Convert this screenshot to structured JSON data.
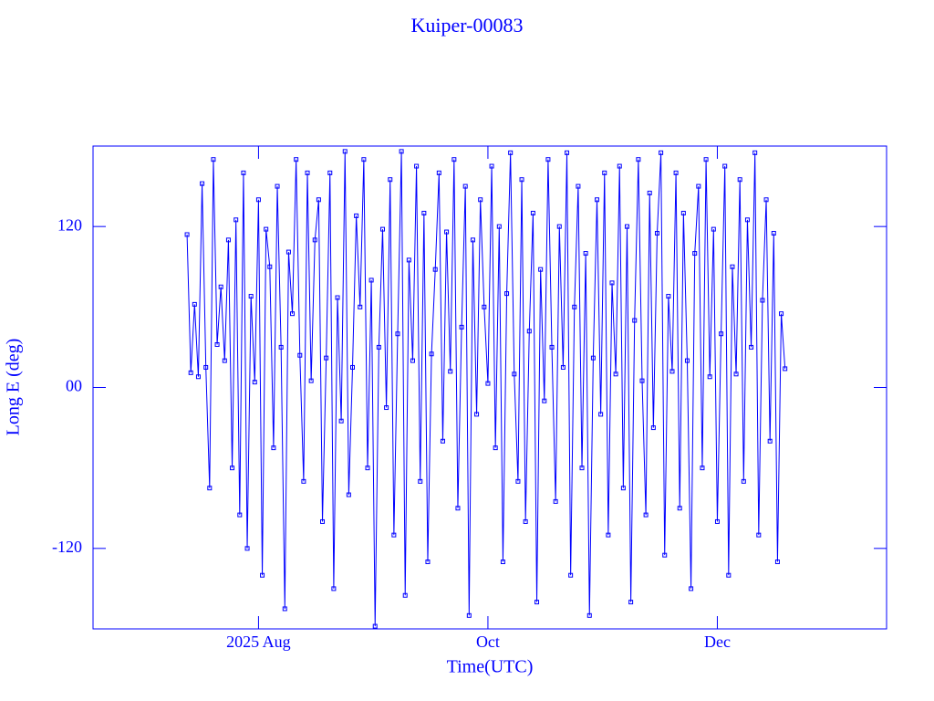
{
  "chart_data": {
    "type": "line",
    "title": "Kuiper-00083",
    "x_label": "Time(UTC)",
    "y_label": "Long E (deg)",
    "color": "#0000ff",
    "xlim": [
      "2025-06-18",
      "2026-01-15"
    ],
    "xticks": [
      {
        "value": "2025-08-01",
        "label": "2025 Aug"
      },
      {
        "value": "2025-10-01",
        "label": "Oct"
      },
      {
        "value": "2025-12-01",
        "label": "Dec"
      }
    ],
    "ylim": [
      -180,
      180
    ],
    "yticks": [
      120,
      {
        "value": 0,
        "label": "00"
      },
      -120
    ],
    "x": [
      "2025-07-13",
      "2025-07-14",
      "2025-07-15",
      "2025-07-16",
      "2025-07-17",
      "2025-07-18",
      "2025-07-19",
      "2025-07-20",
      "2025-07-21",
      "2025-07-22",
      "2025-07-23",
      "2025-07-24",
      "2025-07-25",
      "2025-07-26",
      "2025-07-27",
      "2025-07-28",
      "2025-07-29",
      "2025-07-30",
      "2025-07-31",
      "2025-08-01",
      "2025-08-02",
      "2025-08-03",
      "2025-08-04",
      "2025-08-05",
      "2025-08-06",
      "2025-08-07",
      "2025-08-08",
      "2025-08-09",
      "2025-08-10",
      "2025-08-11",
      "2025-08-12",
      "2025-08-13",
      "2025-08-14",
      "2025-08-15",
      "2025-08-16",
      "2025-08-17",
      "2025-08-18",
      "2025-08-19",
      "2025-08-20",
      "2025-08-21",
      "2025-08-22",
      "2025-08-23",
      "2025-08-24",
      "2025-08-25",
      "2025-08-26",
      "2025-08-27",
      "2025-08-28",
      "2025-08-29",
      "2025-08-30",
      "2025-08-31",
      "2025-09-01",
      "2025-09-02",
      "2025-09-03",
      "2025-09-04",
      "2025-09-05",
      "2025-09-06",
      "2025-09-07",
      "2025-09-08",
      "2025-09-09",
      "2025-09-10",
      "2025-09-11",
      "2025-09-12",
      "2025-09-13",
      "2025-09-14",
      "2025-09-15",
      "2025-09-16",
      "2025-09-17",
      "2025-09-18",
      "2025-09-19",
      "2025-09-20",
      "2025-09-21",
      "2025-09-22",
      "2025-09-23",
      "2025-09-24",
      "2025-09-25",
      "2025-09-26",
      "2025-09-27",
      "2025-09-28",
      "2025-09-29",
      "2025-09-30",
      "2025-10-01",
      "2025-10-02",
      "2025-10-03",
      "2025-10-04",
      "2025-10-05",
      "2025-10-06",
      "2025-10-07",
      "2025-10-08",
      "2025-10-09",
      "2025-10-10",
      "2025-10-11",
      "2025-10-12",
      "2025-10-13",
      "2025-10-14",
      "2025-10-15",
      "2025-10-16",
      "2025-10-17",
      "2025-10-18",
      "2025-10-19",
      "2025-10-20",
      "2025-10-21",
      "2025-10-22",
      "2025-10-23",
      "2025-10-24",
      "2025-10-25",
      "2025-10-26",
      "2025-10-27",
      "2025-10-28",
      "2025-10-29",
      "2025-10-30",
      "2025-10-31",
      "2025-11-01",
      "2025-11-02",
      "2025-11-03",
      "2025-11-04",
      "2025-11-05",
      "2025-11-06",
      "2025-11-07",
      "2025-11-08",
      "2025-11-09",
      "2025-11-10",
      "2025-11-11",
      "2025-11-12",
      "2025-11-13",
      "2025-11-14",
      "2025-11-15",
      "2025-11-16",
      "2025-11-17",
      "2025-11-18",
      "2025-11-19",
      "2025-11-20",
      "2025-11-21",
      "2025-11-22",
      "2025-11-23",
      "2025-11-24",
      "2025-11-25",
      "2025-11-26",
      "2025-11-27",
      "2025-11-28",
      "2025-11-29",
      "2025-11-30",
      "2025-12-01",
      "2025-12-02",
      "2025-12-03",
      "2025-12-04",
      "2025-12-05",
      "2025-12-06",
      "2025-12-07",
      "2025-12-08",
      "2025-12-09",
      "2025-12-10",
      "2025-12-11",
      "2025-12-12",
      "2025-12-13",
      "2025-12-14",
      "2025-12-15",
      "2025-12-16",
      "2025-12-17",
      "2025-12-18",
      "2025-12-19"
    ],
    "values": [
      114,
      11,
      62,
      8,
      152,
      15,
      -75,
      170,
      32,
      75,
      20,
      110,
      -60,
      125,
      -95,
      160,
      -120,
      68,
      4,
      140,
      -140,
      118,
      90,
      -45,
      150,
      30,
      -165,
      101,
      55,
      170,
      24,
      -70,
      160,
      5,
      110,
      140,
      -100,
      22,
      160,
      -150,
      67,
      -25,
      176,
      -80,
      15,
      128,
      60,
      170,
      -60,
      80,
      -178,
      30,
      118,
      -15,
      155,
      -110,
      40,
      176,
      -155,
      95,
      20,
      165,
      -70,
      130,
      -130,
      25,
      88,
      160,
      -40,
      116,
      12,
      170,
      -90,
      45,
      150,
      -170,
      110,
      -20,
      140,
      60,
      3,
      165,
      -45,
      120,
      -130,
      70,
      175,
      10,
      -70,
      155,
      -100,
      42,
      130,
      -160,
      88,
      -10,
      170,
      30,
      -85,
      120,
      15,
      175,
      -140,
      60,
      150,
      -60,
      100,
      -170,
      22,
      140,
      -20,
      160,
      -110,
      78,
      10,
      165,
      -75,
      120,
      -160,
      50,
      170,
      5,
      -95,
      145,
      -30,
      115,
      175,
      -125,
      68,
      12,
      160,
      -90,
      130,
      20,
      -150,
      100,
      150,
      -60,
      170,
      8,
      118,
      -100,
      40,
      165,
      -140,
      90,
      10,
      155,
      -70,
      125,
      30,
      175,
      -110,
      65,
      140,
      -40,
      115,
      -130,
      55,
      14
    ]
  }
}
